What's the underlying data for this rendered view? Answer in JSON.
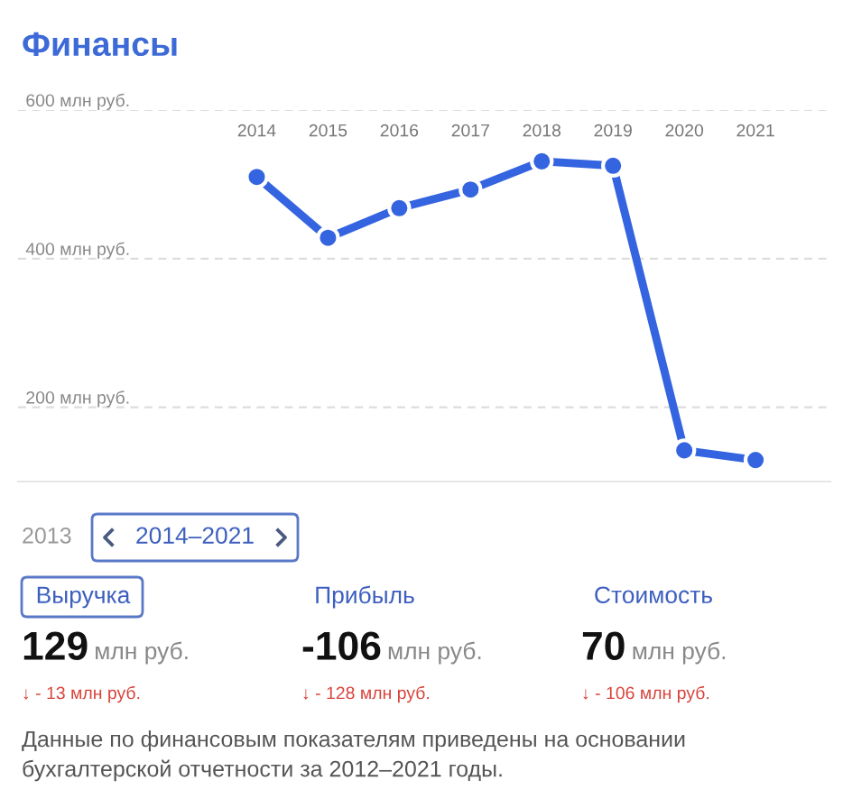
{
  "chart_data": [
    {
      "type": "line",
      "title": "Финансы",
      "categories": [
        "2014",
        "2015",
        "2016",
        "2017",
        "2018",
        "2019",
        "2020",
        "2021"
      ],
      "series": [
        {
          "color": "#3564e0",
          "values": [
            510,
            428,
            468,
            493,
            531,
            525,
            142,
            129
          ]
        }
      ],
      "ylim": [
        100,
        600
      ],
      "yticks": [
        {
          "value": 200,
          "label": "200 млн руб."
        },
        {
          "value": 400,
          "label": "400 млн руб."
        },
        {
          "value": 600,
          "label": "600 млн руб."
        }
      ],
      "grid": "y",
      "marker": "circle",
      "line_style": "solid"
    },
    {
      "type": "other",
      "categories": [
        "Выручка",
        "Прибыль",
        "Стоимость"
      ],
      "value_labels": [
        "129",
        "-106",
        "70"
      ],
      "annotations": [
        "2013",
        "2014–2021",
        "млн руб.",
        "млн руб.",
        "млн руб.",
        "↓ - 13 млн руб.",
        "↓ - 128 млн руб.",
        "↓ - 106 млн руб.",
        "Данные по финансовым показателям приведены на основании бухгалтерской отчетности за 2012–2021 годы."
      ]
    }
  ]
}
